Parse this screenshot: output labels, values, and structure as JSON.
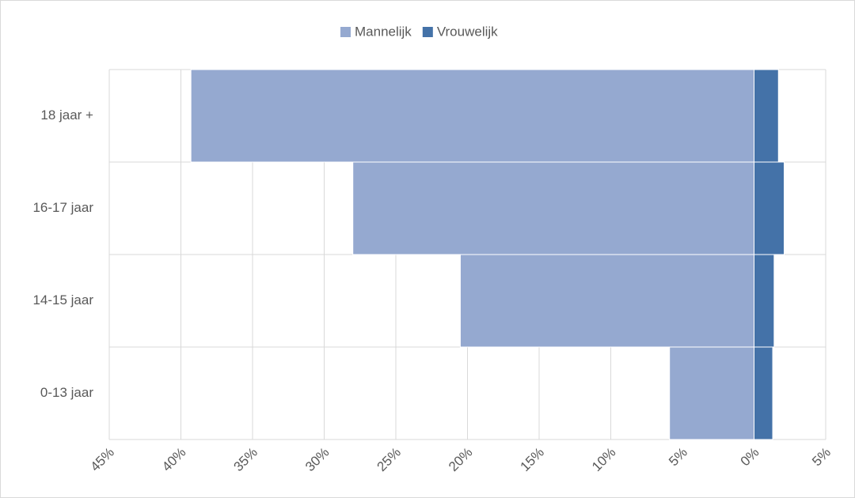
{
  "chart_data": {
    "type": "bar",
    "orientation": "horizontal",
    "stacked": true,
    "categories": [
      "18 jaar +",
      "16-17 jaar",
      "14-15 jaar",
      "0-13 jaar"
    ],
    "series": [
      {
        "name": "Mannelijk",
        "color": "#95a9d0",
        "values": [
          -39.3,
          -28.0,
          -20.5,
          -5.9
        ]
      },
      {
        "name": "Vrouwelijk",
        "color": "#4472a8",
        "values": [
          1.7,
          2.1,
          1.4,
          1.3
        ]
      }
    ],
    "xlim": [
      -45,
      5
    ],
    "xticks": [
      {
        "value": -45,
        "label": "45%"
      },
      {
        "value": -40,
        "label": "40%"
      },
      {
        "value": -35,
        "label": "35%"
      },
      {
        "value": -30,
        "label": "30%"
      },
      {
        "value": -25,
        "label": "25%"
      },
      {
        "value": -20,
        "label": "20%"
      },
      {
        "value": -15,
        "label": "15%"
      },
      {
        "value": -10,
        "label": "10%"
      },
      {
        "value": -5,
        "label": "5%"
      },
      {
        "value": 0,
        "label": "0%"
      },
      {
        "value": 5,
        "label": "5%"
      }
    ],
    "grid": true,
    "legend": "top"
  }
}
